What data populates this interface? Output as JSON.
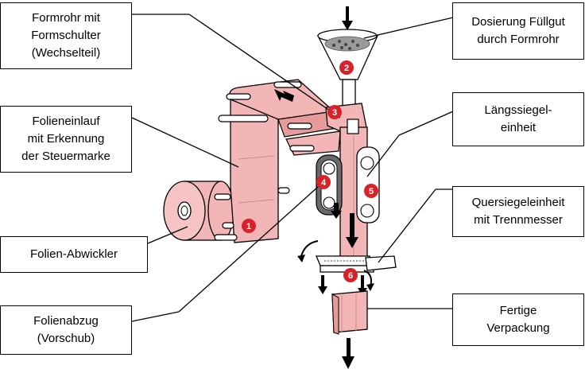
{
  "labels": {
    "formrohr": "Formrohr mit\nFormschulter\n(Wechselteil)",
    "folieneinlauf": "Folieneinlauf\nmit Erkennung\nder Steuermarke",
    "abwickler": "Folien-Abwickler",
    "folienabzug": "Folienabzug\n(Vorschub)",
    "dosierung": "Dosierung Füllgut\ndurch Formrohr",
    "laengssiegel": "Längssiegel-\neinheit",
    "quersiegel": "Quersiegeleinheit\nmit Trennmesser",
    "fertig": "Fertige\nVerpackung"
  },
  "markers": [
    "1",
    "2",
    "3",
    "4",
    "5",
    "6"
  ],
  "colors": {
    "film": "#f3b6b6",
    "film_dark": "#e79a9a",
    "marker": "#d8222a",
    "line": "#000000"
  }
}
